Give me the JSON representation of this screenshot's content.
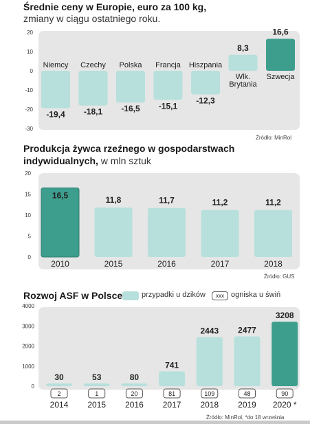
{
  "chart_data": [
    {
      "type": "bar",
      "title": "Średnie ceny w Europie, euro za 100 kg,",
      "subtitle": "zmiany w ciągu ostatniego roku.",
      "categories": [
        "Niemcy",
        "Czechy",
        "Polska",
        "Francja",
        "Hiszpania",
        "Wlk. Brytania",
        "Szwecja"
      ],
      "values": [
        -19.4,
        -18.1,
        -16.5,
        -15.1,
        -12.3,
        8.3,
        16.6
      ],
      "value_labels": [
        "-19,4",
        "-18,1",
        "-16,5",
        "-15,1",
        "-12,3",
        "8,3",
        "16,6"
      ],
      "ylim": [
        -30,
        20
      ],
      "yticks": [
        20,
        10,
        0,
        -10,
        -20,
        -30
      ],
      "highlight_index": 6,
      "source": "Źródło: MinRol"
    },
    {
      "type": "bar",
      "title": "Produkcja żywca rzeźnego w gospodarstwach",
      "title2": "indywidualnych,",
      "subtitle": " w mln sztuk",
      "categories": [
        "2010",
        "2015",
        "2016",
        "2017",
        "2018"
      ],
      "values": [
        16.5,
        11.8,
        11.7,
        11.2,
        11.2
      ],
      "value_labels": [
        "16,5",
        "11,8",
        "11,7",
        "11,2",
        "11,2"
      ],
      "ylim": [
        0,
        20
      ],
      "yticks": [
        20,
        15,
        10,
        5,
        0
      ],
      "highlight_index": 0,
      "source": "Źródło: GUS"
    },
    {
      "type": "bar",
      "title": "Rozwoj ASF w Polsce",
      "legend": [
        {
          "label": "przypadki u dzików"
        },
        {
          "box": "xxx",
          "label": "ogniska u świń"
        }
      ],
      "categories": [
        "2014",
        "2015",
        "2016",
        "2017",
        "2018",
        "2019",
        "2020 *"
      ],
      "series": [
        {
          "name": "przypadki u dzików",
          "values": [
            30,
            53,
            80,
            741,
            2443,
            2477,
            3208
          ]
        },
        {
          "name": "ogniska u świń",
          "values": [
            2,
            1,
            20,
            81,
            109,
            48,
            90
          ]
        }
      ],
      "ylim": [
        0,
        4000
      ],
      "yticks": [
        4000,
        3000,
        2000,
        1000,
        0
      ],
      "highlight_index": 6,
      "source": "Źródło: MinRol, *do 18 września"
    }
  ],
  "colors": {
    "dark": "#3e9e8e",
    "light": "#b7e0dc",
    "panel": "#e6e6e6"
  }
}
